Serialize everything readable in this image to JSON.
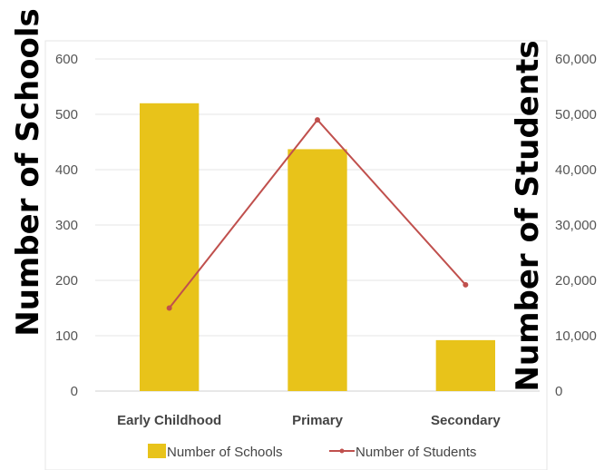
{
  "chart_data": {
    "type": "bar+line",
    "categories": [
      "Early Childhood",
      "Primary",
      "Secondary"
    ],
    "series": [
      {
        "name": "Number of Schools",
        "kind": "bar",
        "axis": "left",
        "color": "#E8C31A",
        "values": [
          520,
          437,
          92
        ]
      },
      {
        "name": "Number of Students",
        "kind": "line",
        "axis": "right",
        "color": "#C0504D",
        "values": [
          15000,
          49000,
          19200
        ]
      }
    ],
    "ylabel": "Number of Schools",
    "ylabel_right": "Number of Students",
    "ylim": [
      0,
      600
    ],
    "ylim_right": [
      0,
      60000
    ],
    "yticks": [
      "0",
      "100",
      "200",
      "300",
      "400",
      "500",
      "600"
    ],
    "yticks_right": [
      "0",
      "10,000",
      "20,000",
      "30,000",
      "40,000",
      "50,000",
      "60,000"
    ],
    "grid": true,
    "legend_position": "bottom"
  }
}
